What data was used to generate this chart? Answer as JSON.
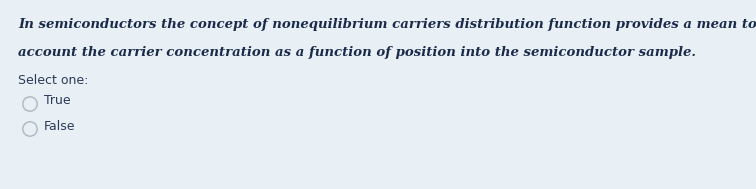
{
  "background_color": "#e8f0f5",
  "line1": "In semiconductors the concept of nonequilibrium carriers distribution function provides a mean to take into",
  "line2": "account the carrier concentration as a function of position into the semiconductor sample.",
  "select_label": "Select one:",
  "options": [
    "True",
    "False"
  ],
  "text_color": "#1a2a4a",
  "select_color": "#2a3a5a",
  "option_color": "#2a3a5a",
  "circle_edge_color": "#aab8c2",
  "font_size_body": 9.5,
  "font_size_select": 9.0,
  "font_size_options": 9.0,
  "fig_width": 7.56,
  "fig_height": 1.89,
  "dpi": 100
}
